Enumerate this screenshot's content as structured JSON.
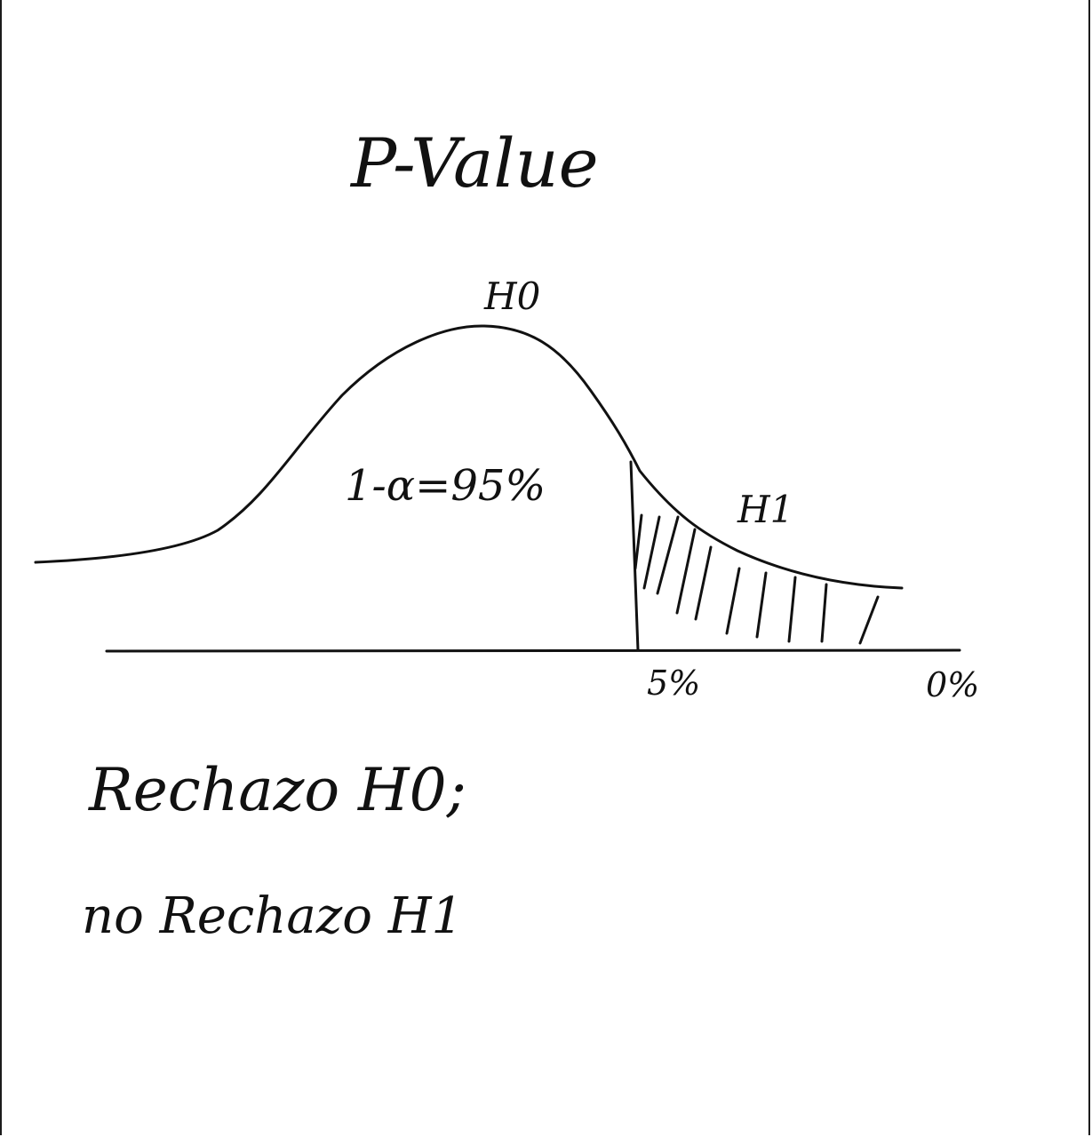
{
  "title": "P-Value",
  "curve": {
    "null_label": "H0",
    "alt_label": "H1",
    "acceptance_label": "1-α=95%"
  },
  "axis": {
    "ticks": [
      "5%",
      "0%"
    ]
  },
  "notes": {
    "line1": "Rechazo H0;",
    "line2": "no Rechazo H1"
  },
  "colors": {
    "ink": "#111111",
    "paper": "#ffffff"
  }
}
